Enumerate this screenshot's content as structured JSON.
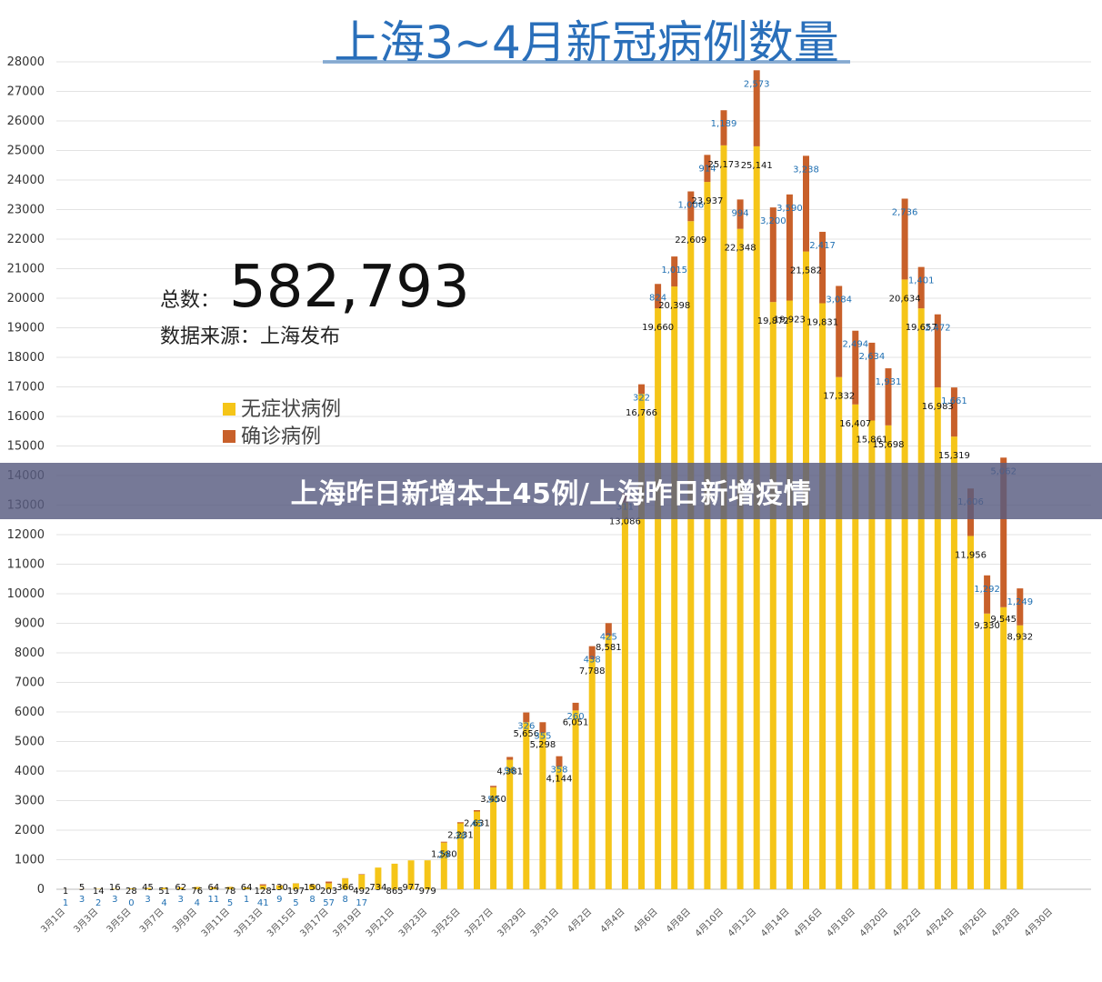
{
  "chart_data": {
    "type": "bar",
    "title": "上海3~4月新冠病例数量",
    "ylim": [
      0,
      28000
    ],
    "yticks": [
      0,
      1000,
      2000,
      3000,
      4000,
      5000,
      6000,
      7000,
      8000,
      9000,
      10000,
      11000,
      12000,
      13000,
      14000,
      15000,
      16000,
      17000,
      18000,
      19000,
      20000,
      21000,
      22000,
      23000,
      24000,
      25000,
      26000,
      27000,
      28000
    ],
    "categories": [
      "3月1日",
      "3月2日",
      "3月3日",
      "3月4日",
      "3月5日",
      "3月6日",
      "3月7日",
      "3月8日",
      "3月9日",
      "3月10日",
      "3月11日",
      "3月12日",
      "3月13日",
      "3月14日",
      "3月15日",
      "3月16日",
      "3月17日",
      "3月18日",
      "3月19日",
      "3月20日",
      "3月21日",
      "3月22日",
      "3月23日",
      "3月24日",
      "3月25日",
      "3月26日",
      "3月27日",
      "3月28日",
      "3月29日",
      "3月30日",
      "3月31日",
      "4月1日",
      "4月2日",
      "4月3日",
      "4月4日",
      "4月5日",
      "4月6日",
      "4月7日",
      "4月8日",
      "4月9日",
      "4月10日",
      "4月11日",
      "4月12日",
      "4月13日",
      "4月14日",
      "4月15日",
      "4月16日",
      "4月17日",
      "4月18日",
      "4月19日",
      "4月20日",
      "4月21日",
      "4月22日",
      "4月23日",
      "4月24日",
      "4月25日",
      "4月26日",
      "4月27日",
      "4月28日",
      "4月29日",
      "4月30日"
    ],
    "xtick_labels": [
      "3月1日",
      "3月3日",
      "3月5日",
      "3月7日",
      "3月9日",
      "3月11日",
      "3月13日",
      "3月15日",
      "3月17日",
      "3月19日",
      "3月21日",
      "3月23日",
      "3月25日",
      "3月27日",
      "3月29日",
      "3月31日",
      "4月2日",
      "4月4日",
      "4月6日",
      "4月8日",
      "4月10日",
      "4月12日",
      "4月14日",
      "4月16日",
      "4月18日",
      "4月20日",
      "4月22日",
      "4月24日",
      "4月26日",
      "4月28日",
      "4月30日"
    ],
    "series": [
      {
        "name": "无症状病例",
        "color": "#f5c518",
        "values": [
          1,
          5,
          14,
          16,
          28,
          45,
          51,
          62,
          76,
          64,
          78,
          64,
          128,
          130,
          197,
          150,
          203,
          366,
          492,
          734,
          865,
          977,
          979,
          1580,
          2231,
          2631,
          3450,
          4381,
          5656,
          5298,
          4144,
          6051,
          7788,
          8581,
          13086,
          16766,
          19660,
          20398,
          22609,
          23937,
          25173,
          22348,
          25141,
          19872,
          19923,
          21582,
          19831,
          17332,
          16407,
          15861,
          15698,
          20634,
          19657,
          16983,
          15319,
          11956,
          9330,
          9545,
          8932,
          null,
          null
        ]
      },
      {
        "name": "确诊病例",
        "color": "#c8602a",
        "values": [
          1,
          3,
          2,
          3,
          0,
          3,
          4,
          3,
          4,
          11,
          5,
          1,
          41,
          9,
          5,
          8,
          57,
          8,
          17,
          null,
          null,
          null,
          null,
          29,
          38,
          45,
          50,
          96,
          326,
          355,
          358,
          260,
          438,
          425,
          311,
          322,
          824,
          1015,
          1006,
          914,
          1189,
          994,
          2573,
          3200,
          3590,
          3238,
          2417,
          3084,
          2494,
          2634,
          1931,
          2736,
          1401,
          2472,
          1661,
          1606,
          1292,
          5062,
          1249,
          null,
          null
        ]
      }
    ]
  },
  "annotation": {
    "total_label": "总数：",
    "total_value": "582,793",
    "source": "数据来源：上海发布"
  },
  "banner": "上海昨日新增本土45例/上海昨日新增疫情"
}
